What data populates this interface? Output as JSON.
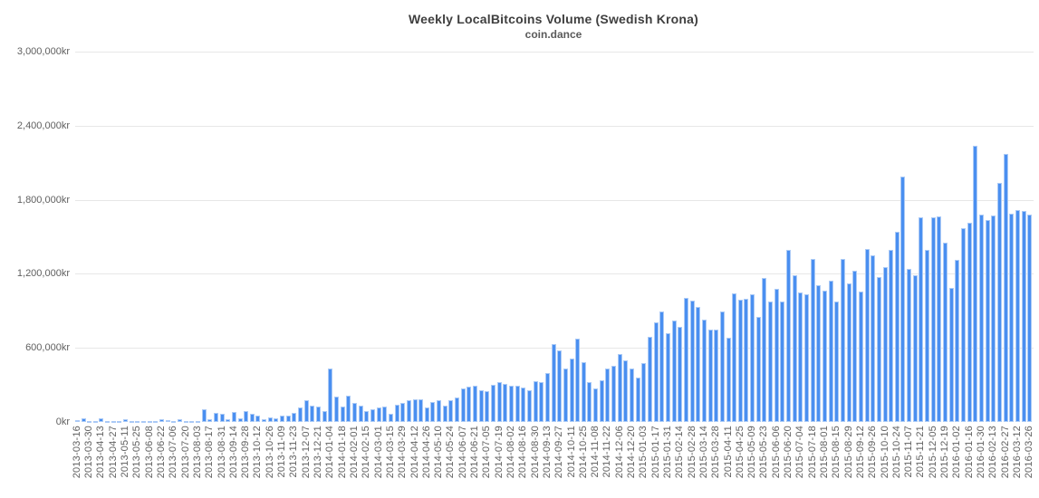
{
  "chart_data": {
    "type": "bar",
    "title": "Weekly LocalBitcoins Volume (Swedish Krona)",
    "subtitle": "coin.dance",
    "xlabel": "",
    "ylabel": "",
    "ylim": [
      0,
      3000000
    ],
    "grid": "horizontal",
    "legend": "none",
    "x_label_every": 2,
    "colors": {
      "bar_fill": "#4a8ff0",
      "bar_border": "#abcaf6",
      "gridline": "#e7e7e7",
      "axis_text": "#606060"
    },
    "y_ticks": [
      {
        "value": 0,
        "label": "0kr"
      },
      {
        "value": 600000,
        "label": "600,000kr"
      },
      {
        "value": 1200000,
        "label": "1,200,000kr"
      },
      {
        "value": 1800000,
        "label": "1,800,000kr"
      },
      {
        "value": 2400000,
        "label": "2,400,000kr"
      },
      {
        "value": 3000000,
        "label": "3,000,000kr"
      }
    ],
    "x": [
      "2013-03-16",
      "2013-03-23",
      "2013-03-30",
      "2013-04-06",
      "2013-04-13",
      "2013-04-20",
      "2013-04-27",
      "2013-05-04",
      "2013-05-11",
      "2013-05-18",
      "2013-05-25",
      "2013-06-01",
      "2013-06-08",
      "2013-06-15",
      "2013-06-22",
      "2013-06-29",
      "2013-07-06",
      "2013-07-13",
      "2013-07-20",
      "2013-07-27",
      "2013-08-03",
      "2013-08-10",
      "2013-08-17",
      "2013-08-24",
      "2013-08-31",
      "2013-09-07",
      "2013-09-14",
      "2013-09-21",
      "2013-09-28",
      "2013-10-05",
      "2013-10-12",
      "2013-10-19",
      "2013-10-26",
      "2013-11-02",
      "2013-11-09",
      "2013-11-16",
      "2013-11-23",
      "2013-11-30",
      "2013-12-07",
      "2013-12-14",
      "2013-12-21",
      "2013-12-28",
      "2014-01-04",
      "2014-01-11",
      "2014-01-18",
      "2014-01-25",
      "2014-02-01",
      "2014-02-08",
      "2014-02-15",
      "2014-02-22",
      "2014-03-01",
      "2014-03-08",
      "2014-03-15",
      "2014-03-22",
      "2014-03-29",
      "2014-04-05",
      "2014-04-12",
      "2014-04-19",
      "2014-04-26",
      "2014-05-03",
      "2014-05-10",
      "2014-05-17",
      "2014-05-24",
      "2014-05-31",
      "2014-06-07",
      "2014-06-14",
      "2014-06-21",
      "2014-06-28",
      "2014-07-05",
      "2014-07-12",
      "2014-07-19",
      "2014-07-26",
      "2014-08-02",
      "2014-08-09",
      "2014-08-16",
      "2014-08-23",
      "2014-08-30",
      "2014-09-06",
      "2014-09-13",
      "2014-09-20",
      "2014-09-27",
      "2014-10-04",
      "2014-10-11",
      "2014-10-18",
      "2014-10-25",
      "2014-11-01",
      "2014-11-08",
      "2014-11-15",
      "2014-11-22",
      "2014-11-29",
      "2014-12-06",
      "2014-12-13",
      "2014-12-20",
      "2014-12-27",
      "2015-01-03",
      "2015-01-10",
      "2015-01-17",
      "2015-01-24",
      "2015-01-31",
      "2015-02-07",
      "2015-02-14",
      "2015-02-21",
      "2015-02-28",
      "2015-03-07",
      "2015-03-14",
      "2015-03-21",
      "2015-03-28",
      "2015-04-04",
      "2015-04-11",
      "2015-04-18",
      "2015-04-25",
      "2015-05-02",
      "2015-05-09",
      "2015-05-16",
      "2015-05-23",
      "2015-05-30",
      "2015-06-06",
      "2015-06-13",
      "2015-06-20",
      "2015-06-27",
      "2015-07-04",
      "2015-07-11",
      "2015-07-18",
      "2015-07-25",
      "2015-08-01",
      "2015-08-08",
      "2015-08-15",
      "2015-08-22",
      "2015-08-29",
      "2015-09-05",
      "2015-09-12",
      "2015-09-19",
      "2015-09-26",
      "2015-10-03",
      "2015-10-10",
      "2015-10-17",
      "2015-10-24",
      "2015-10-31",
      "2015-11-07",
      "2015-11-14",
      "2015-11-21",
      "2015-11-28",
      "2015-12-05",
      "2015-12-12",
      "2015-12-19",
      "2015-12-26",
      "2016-01-02",
      "2016-01-09",
      "2016-01-16",
      "2016-01-23",
      "2016-01-30",
      "2016-02-06",
      "2016-02-13",
      "2016-02-20",
      "2016-02-27",
      "2016-03-05",
      "2016-03-12",
      "2016-03-19",
      "2016-03-26"
    ],
    "values": [
      17000,
      26000,
      7000,
      8000,
      31000,
      8000,
      5000,
      5000,
      22000,
      10000,
      5000,
      5000,
      6000,
      6000,
      24000,
      12000,
      5000,
      19000,
      6000,
      5000,
      7000,
      105000,
      24000,
      72000,
      67000,
      24000,
      79000,
      29000,
      85000,
      67000,
      48000,
      19000,
      36000,
      33000,
      48000,
      53000,
      72000,
      115000,
      179000,
      131000,
      127000,
      91000,
      430000,
      206000,
      127000,
      210000,
      155000,
      131000,
      88000,
      103000,
      120000,
      124000,
      67000,
      143000,
      155000,
      174000,
      186000,
      183000,
      117000,
      158000,
      173000,
      129000,
      173000,
      195000,
      271000,
      285000,
      295000,
      259000,
      246000,
      300000,
      320000,
      310000,
      290000,
      295000,
      276000,
      259000,
      329000,
      320000,
      393000,
      634000,
      576000,
      434000,
      515000,
      673000,
      483000,
      325000,
      268000,
      337000,
      434000,
      454000,
      549000,
      502000,
      434000,
      361000,
      478000,
      690000,
      810000,
      897000,
      722000,
      822000,
      771000,
      1002000,
      983000,
      934000,
      829000,
      746000,
      751000,
      897000,
      683000,
      1044000,
      990000,
      995000,
      1032000,
      849000,
      1163000,
      974000,
      1080000,
      974000,
      1390000,
      1190000,
      1048000,
      1031000,
      1322000,
      1104000,
      1067000,
      1141000,
      974000,
      1322000,
      1121000,
      1224000,
      1053000,
      1403000,
      1346000,
      1170000,
      1256000,
      1390000,
      1542000,
      1985000,
      1239000,
      1190000,
      1660000,
      1395000,
      1655000,
      1667000,
      1452000,
      1084000,
      1310000,
      1569000,
      1611000,
      2235000,
      1679000,
      1635000,
      1672000,
      1936000,
      2174000,
      1684000,
      1714000,
      1709000,
      1679000
    ]
  }
}
